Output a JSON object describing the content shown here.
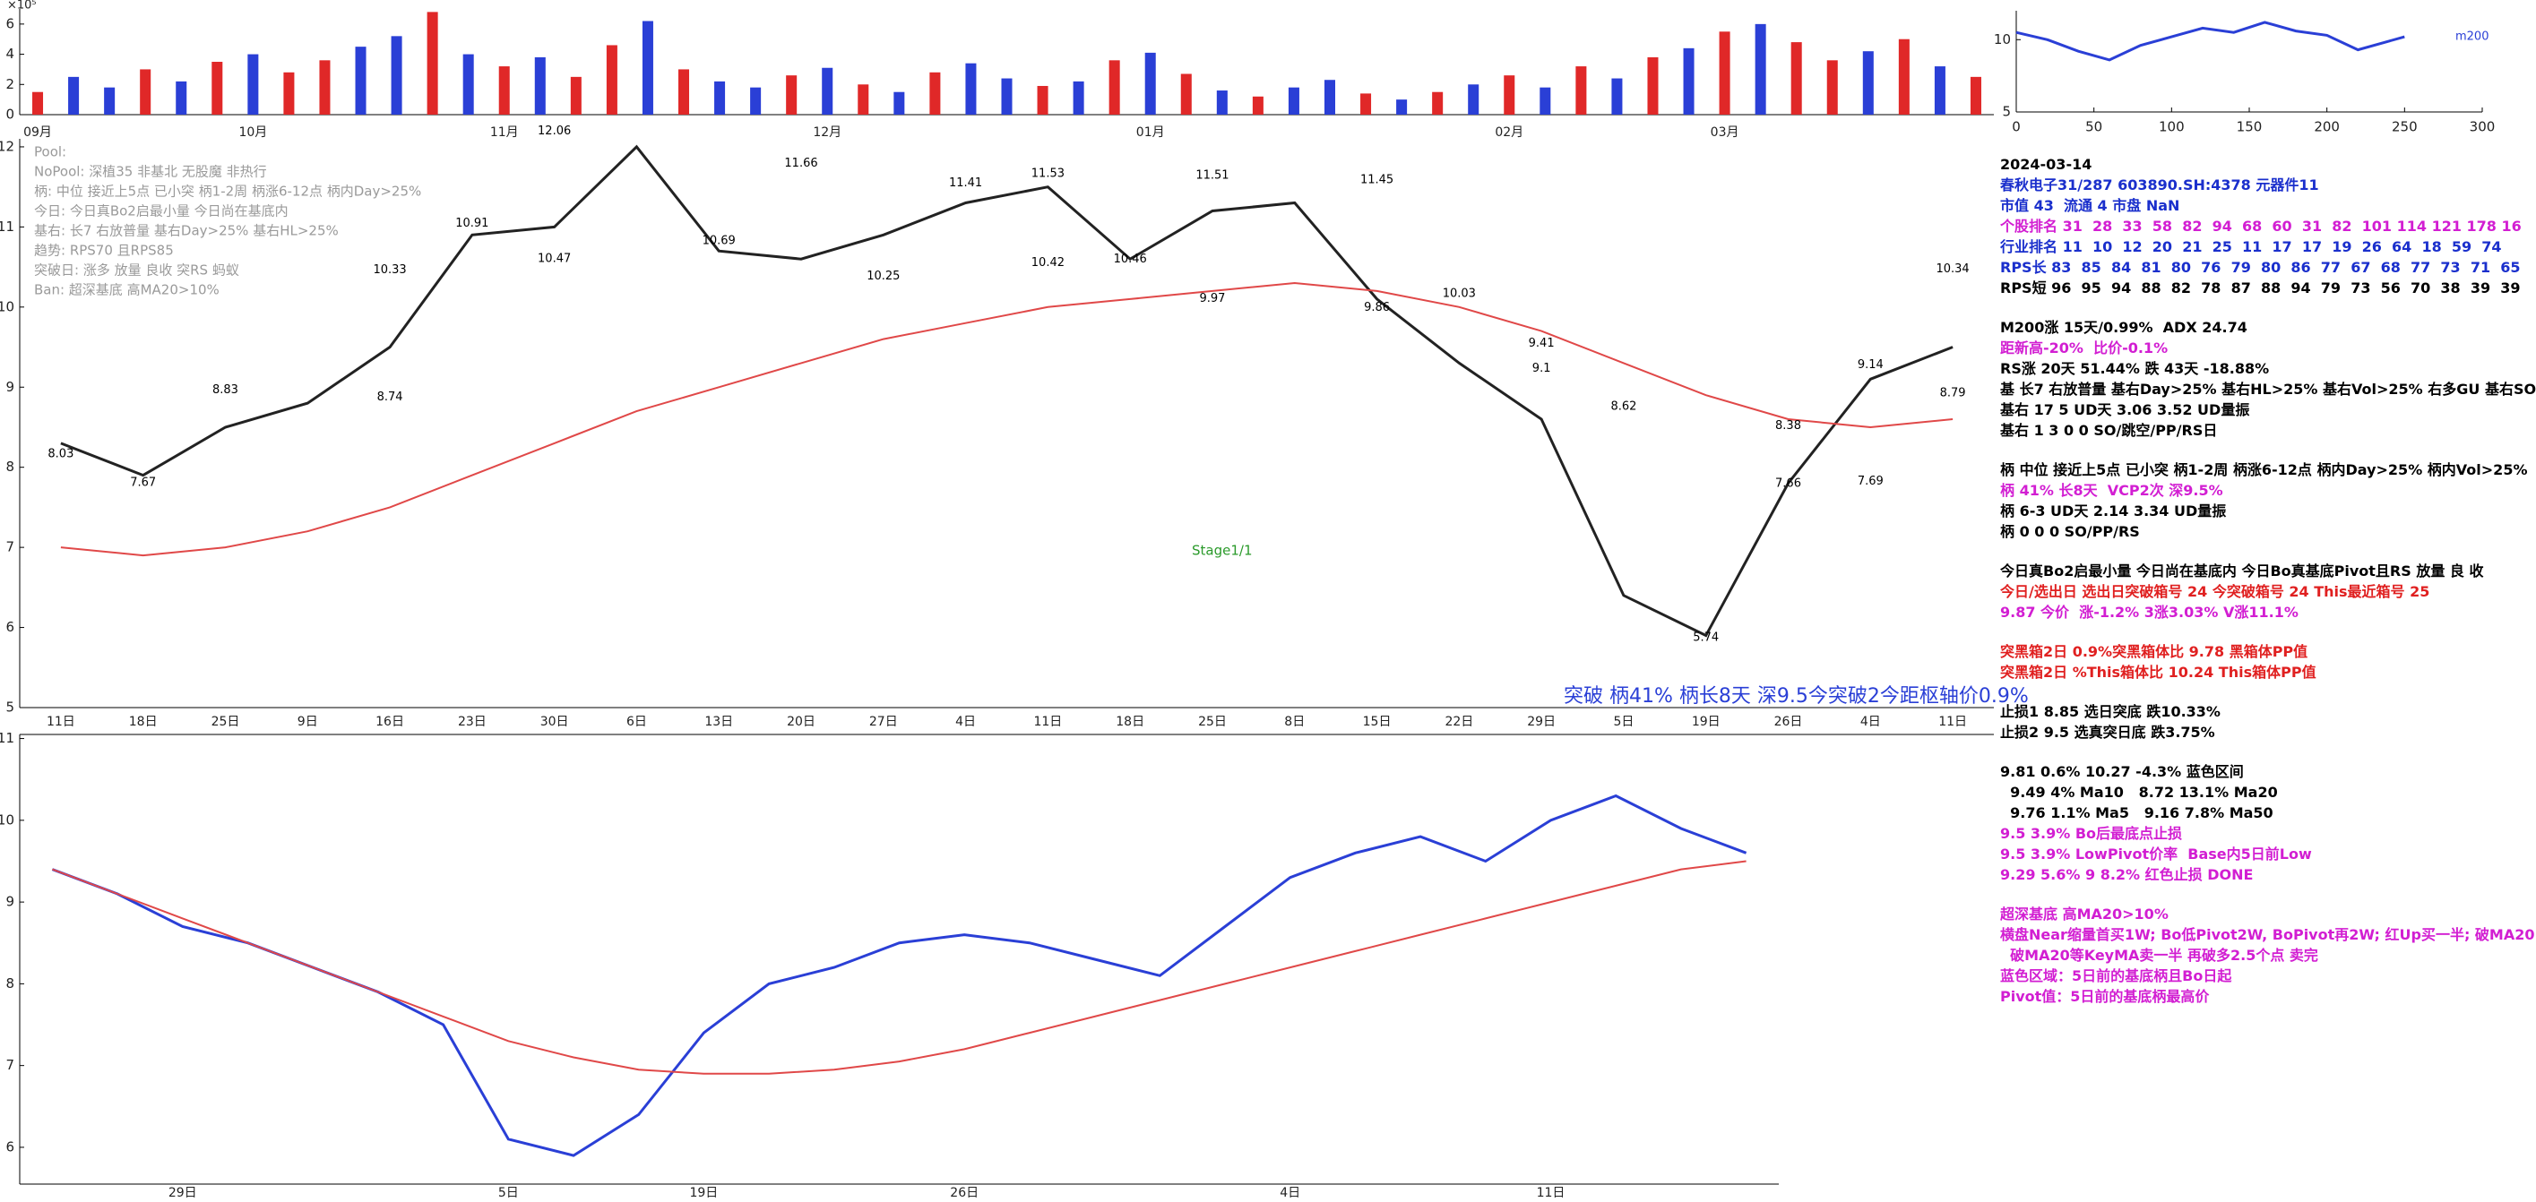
{
  "chart_data": [
    {
      "type": "bar",
      "y_multiplier": "×10⁵",
      "categories": [
        "09月",
        null,
        null,
        null,
        null,
        null,
        "10月",
        null,
        null,
        null,
        null,
        null,
        null,
        "11月",
        null,
        null,
        null,
        null,
        null,
        null,
        null,
        null,
        "12月",
        null,
        null,
        null,
        null,
        null,
        null,
        null,
        null,
        "01月",
        null,
        null,
        null,
        null,
        null,
        null,
        null,
        null,
        null,
        "02月",
        null,
        null,
        null,
        null,
        null,
        "03月",
        null,
        null,
        null,
        null,
        null,
        null,
        null
      ],
      "values": [
        1.5,
        2.5,
        1.8,
        3.0,
        2.2,
        3.5,
        4.0,
        2.8,
        3.6,
        4.5,
        5.2,
        6.8,
        4.0,
        3.2,
        3.8,
        2.5,
        4.6,
        6.2,
        3.0,
        2.2,
        1.8,
        2.6,
        3.1,
        2.0,
        1.5,
        2.8,
        3.4,
        2.4,
        1.9,
        2.2,
        3.6,
        4.1,
        2.7,
        1.6,
        1.2,
        1.8,
        2.3,
        1.4,
        1.0,
        1.5,
        2.0,
        2.6,
        1.8,
        3.2,
        2.4,
        3.8,
        4.4,
        5.5,
        6.0,
        4.8,
        3.6,
        4.2,
        5.0,
        3.2,
        2.5
      ],
      "colors": [
        "#e02828",
        "#2a3fd6",
        "#2a3fd6",
        "#e02828",
        "#2a3fd6",
        "#e02828",
        "#2a3fd6",
        "#e02828",
        "#e02828",
        "#2a3fd6",
        "#2a3fd6",
        "#e02828",
        "#2a3fd6",
        "#e02828",
        "#2a3fd6",
        "#e02828",
        "#e02828",
        "#2a3fd6",
        "#e02828",
        "#2a3fd6",
        "#2a3fd6",
        "#e02828",
        "#2a3fd6",
        "#e02828",
        "#2a3fd6",
        "#e02828",
        "#2a3fd6",
        "#2a3fd6",
        "#e02828",
        "#2a3fd6",
        "#e02828",
        "#2a3fd6",
        "#e02828",
        "#2a3fd6",
        "#e02828",
        "#2a3fd6",
        "#2a3fd6",
        "#e02828",
        "#2a3fd6",
        "#e02828",
        "#2a3fd6",
        "#e02828",
        "#2a3fd6",
        "#e02828",
        "#2a3fd6",
        "#e02828",
        "#2a3fd6",
        "#e02828",
        "#2a3fd6",
        "#e02828",
        "#e02828",
        "#2a3fd6",
        "#e02828",
        "#2a3fd6",
        "#e02828"
      ],
      "ylim": [
        0,
        7
      ],
      "yticks": [
        0,
        2,
        4,
        6
      ]
    },
    {
      "type": "line",
      "categories": [
        "11日",
        "18日",
        "25日",
        "9日",
        "16日",
        "23日",
        "30日",
        "6日",
        "13日",
        "20日",
        "27日",
        "4日",
        "11日",
        "18日",
        "25日",
        "8日",
        "15日",
        "22日",
        "29日",
        "5日",
        "19日",
        "26日",
        "4日",
        "11日"
      ],
      "series": [
        {
          "color": "#222222",
          "values": [
            8.3,
            7.9,
            8.5,
            8.8,
            9.5,
            10.9,
            11.0,
            12.0,
            10.7,
            10.6,
            10.9,
            11.3,
            11.5,
            10.6,
            11.2,
            11.3,
            10.1,
            9.3,
            8.6,
            6.4,
            5.9,
            7.8,
            9.1,
            9.5
          ]
        },
        {
          "color": "#e04848",
          "values": [
            7.0,
            6.9,
            7.0,
            7.2,
            7.5,
            7.9,
            8.3,
            8.7,
            9.0,
            9.3,
            9.6,
            9.8,
            10.0,
            10.1,
            10.2,
            10.3,
            10.2,
            10.0,
            9.7,
            9.3,
            8.9,
            8.6,
            8.5,
            8.6
          ]
        }
      ],
      "price_labels": [
        {
          "label": "8.03",
          "value": 8.03,
          "index": 0
        },
        {
          "label": "7.67",
          "value": 7.67,
          "index": 1
        },
        {
          "label": "8.83",
          "value": 8.83,
          "index": 2
        },
        {
          "label": "8.74",
          "value": 8.74,
          "index": 4
        },
        {
          "label": "10.33",
          "value": 10.33,
          "index": 4
        },
        {
          "label": "10.91",
          "value": 10.91,
          "index": 5
        },
        {
          "label": "10.47",
          "value": 10.47,
          "index": 6
        },
        {
          "label": "12.06",
          "value": 12.06,
          "index": 6
        },
        {
          "label": "10.69",
          "value": 10.69,
          "index": 8
        },
        {
          "label": "11.66",
          "value": 11.66,
          "index": 9
        },
        {
          "label": "10.25",
          "value": 10.25,
          "index": 10
        },
        {
          "label": "11.41",
          "value": 11.41,
          "index": 11
        },
        {
          "label": "11.53",
          "value": 11.53,
          "index": 12
        },
        {
          "label": "10.42",
          "value": 10.42,
          "index": 12
        },
        {
          "label": "11.51",
          "value": 11.51,
          "index": 14
        },
        {
          "label": "10.46",
          "value": 10.46,
          "index": 13
        },
        {
          "label": "9.97",
          "value": 9.97,
          "index": 14
        },
        {
          "label": "11.45",
          "value": 11.45,
          "index": 16
        },
        {
          "label": "9.86",
          "value": 9.86,
          "index": 16
        },
        {
          "label": "10.03",
          "value": 10.03,
          "index": 17
        },
        {
          "label": "9.41",
          "value": 9.41,
          "index": 18
        },
        {
          "label": "9.1",
          "value": 9.1,
          "index": 18
        },
        {
          "label": "8.62",
          "value": 8.62,
          "index": 19
        },
        {
          "label": "5.74",
          "value": 5.74,
          "index": 20
        },
        {
          "label": "7.66",
          "value": 7.66,
          "index": 21
        },
        {
          "label": "8.38",
          "value": 8.38,
          "index": 21
        },
        {
          "label": "7.69",
          "value": 7.69,
          "index": 22
        },
        {
          "label": "9.14",
          "value": 9.14,
          "index": 22
        },
        {
          "label": "8.79",
          "value": 8.79,
          "index": 23
        },
        {
          "label": "10.34",
          "value": 10.34,
          "index": 23
        }
      ],
      "ylim": [
        5,
        12.1
      ],
      "yticks": [
        5,
        6,
        7,
        8,
        9,
        10,
        11,
        12
      ]
    },
    {
      "type": "line",
      "categories": [
        null,
        null,
        "29日",
        null,
        null,
        null,
        null,
        "5日",
        null,
        null,
        "19日",
        null,
        null,
        null,
        "26日",
        null,
        null,
        null,
        null,
        "4日",
        null,
        null,
        null,
        "11日",
        null,
        null,
        null
      ],
      "series": [
        {
          "color": "#2a3fd6",
          "values": [
            9.4,
            9.1,
            8.7,
            8.5,
            8.2,
            7.9,
            7.5,
            6.1,
            5.9,
            6.4,
            7.4,
            8.0,
            8.2,
            8.5,
            8.6,
            8.5,
            8.3,
            8.1,
            8.7,
            9.3,
            9.6,
            9.8,
            9.5,
            10.0,
            10.3,
            9.9,
            9.6
          ]
        },
        {
          "color": "#e04848",
          "values": [
            9.4,
            9.1,
            8.8,
            8.5,
            8.2,
            7.9,
            7.6,
            7.3,
            7.1,
            6.95,
            6.9,
            6.9,
            6.95,
            7.05,
            7.2,
            7.4,
            7.6,
            7.8,
            8.0,
            8.2,
            8.4,
            8.6,
            8.8,
            9.0,
            9.2,
            9.4,
            9.5
          ]
        }
      ],
      "ylim": [
        5.55,
        11.05
      ],
      "yticks": [
        6,
        7,
        8,
        9,
        10,
        11
      ]
    },
    {
      "type": "line",
      "label": "m200",
      "x": [
        0,
        20,
        40,
        60,
        80,
        100,
        120,
        140,
        160,
        180,
        200,
        220,
        240,
        250
      ],
      "series": [
        {
          "color": "#2a3fd6",
          "values": [
            10.5,
            10,
            9.2,
            8.6,
            9.6,
            10.2,
            10.8,
            10.5,
            11.2,
            10.6,
            10.3,
            9.3,
            9.9,
            10.2
          ]
        }
      ],
      "xlim": [
        0,
        300
      ],
      "xticks": [
        0,
        50,
        100,
        150,
        200,
        250,
        300
      ],
      "ylim": [
        5,
        12
      ],
      "yticks": [
        5,
        10
      ]
    }
  ],
  "overlay_notes": [
    "Pool:",
    "NoPool: 深植35 非基北 无股魔 非热行",
    "柄: 中位 接近上5点 已小突 柄1-2周 柄涨6-12点 柄内Day>25%",
    "今日: 今日真Bo2启最小量 今日尚在基底内",
    "基右: 长7 右放普量 基右Day>25% 基右HL>25%",
    "趋势: RPS70 且RPS85",
    "突破日: 涨多 放量 良收 突RS 蚂蚁",
    "Ban: 超深基底 高MA20>10%"
  ],
  "stage_note": "Stage1/1",
  "breakout_note": "突破 柄41% 柄长8天 深9.5今突破2今距枢轴价0.9%",
  "side_panel": [
    [
      {
        "text": "2024-03-14",
        "color": "#000000"
      },
      {
        "text": "春秋电子31/287 603890.SH:4378 元器件11",
        "color": "#1a2fcc"
      },
      {
        "text": "市值 43  流通 4 市盘 NaN",
        "color": "#1a2fcc"
      },
      {
        "text": "个股排名 31  28  33  58  82  94  68  60  31  82  101 114 121 178 16",
        "color": "#d21ed2"
      },
      {
        "text": "行业排名 11  10  12  20  21  25  11  17  17  19  26  64  18  59  74",
        "color": "#1a2fcc"
      },
      {
        "text": "RPS长 83  85  84  81  80  76  79  80  86  77  67  68  77  73  71  65",
        "color": "#1a2fcc"
      },
      {
        "text": "RPS短 96  95  94  88  82  78  87  88  94  79  73  56  70  38  39  39",
        "color": "#000000"
      }
    ],
    [
      {
        "text": "M200涨 15天/0.99%  ADX 24.74",
        "color": "#000000"
      },
      {
        "text": "距新高-20%  比价-0.1%",
        "color": "#d21ed2"
      },
      {
        "text": "RS涨 20天 51.44% 跌 43天 -18.88%",
        "color": "#000000"
      },
      {
        "text": "基 长7 右放普量 基右Day>25% 基右HL>25% 基右Vol>25% 右多GU 基右SO",
        "color": "#000000"
      },
      {
        "text": "基右 17 5 UD天 3.06 3.52 UD量振",
        "color": "#000000"
      },
      {
        "text": "基右 1 3 0 0 SO/跳空/PP/RS日",
        "color": "#000000"
      }
    ],
    [
      {
        "text": "柄 中位 接近上5点 已小突 柄1-2周 柄涨6-12点 柄内Day>25% 柄内Vol>25%",
        "color": "#000000"
      },
      {
        "text": "柄 41% 长8天  VCP2次 深9.5%",
        "color": "#d21ed2"
      },
      {
        "text": "柄 6-3 UD天 2.14 3.34 UD量振",
        "color": "#000000"
      },
      {
        "text": "柄 0 0 0 SO/PP/RS",
        "color": "#000000"
      }
    ],
    [
      {
        "text": "今日真Bo2启最小量 今日尚在基底内 今日Bo真基底Pivot且RS 放量 良 收",
        "color": "#000000"
      },
      {
        "text": "今日/选出日 选出日突破箱号 24 今突破箱号 24 This最近箱号 25",
        "color": "#e02020"
      },
      {
        "text": "9.87 今价  涨-1.2% 3涨3.03% V涨11.1%",
        "color": "#d21ed2"
      }
    ],
    [
      {
        "text": "突黑箱2日 0.9%突黑箱体比 9.78 黑箱体PP值",
        "color": "#e02020"
      },
      {
        "text": "突黑箱2日 %This箱体比 10.24 This箱体PP值",
        "color": "#e02020"
      }
    ],
    [
      {
        "text": "止损1 8.85 选日突底 跌10.33%",
        "color": "#000000"
      },
      {
        "text": "止损2 9.5 选真突日底 跌3.75%",
        "color": "#000000"
      }
    ],
    [
      {
        "text": "9.81 0.6% 10.27 -4.3% 蓝色区间",
        "color": "#000000"
      },
      {
        "text": "  9.49 4% Ma10   8.72 13.1% Ma20",
        "color": "#000000"
      },
      {
        "text": "  9.76 1.1% Ma5   9.16 7.8% Ma50",
        "color": "#000000"
      },
      {
        "text": "9.5 3.9% Bo后最底点止损",
        "color": "#d21ed2"
      },
      {
        "text": "9.5 3.9% LowPivot价率  Base内5日前Low",
        "color": "#d21ed2"
      },
      {
        "text": "9.29 5.6% 9 8.2% 红色止损 DONE",
        "color": "#d21ed2"
      }
    ],
    [
      {
        "text": "超深基底 高MA20>10%",
        "color": "#d21ed2"
      },
      {
        "text": "横盘Near缩量首买1W; Bo低Pivot2W, BoPivot再2W; 红Up买一半; 破MA20",
        "color": "#d21ed2"
      },
      {
        "text": "  破MA20等KeyMA卖一半 再破多2.5个点 卖完",
        "color": "#d21ed2"
      },
      {
        "text": "蓝色区域：5日前的基底柄且Bo日起",
        "color": "#d21ed2"
      },
      {
        "text": "Pivot值：5日前的基底柄最高价",
        "color": "#d21ed2"
      }
    ]
  ]
}
